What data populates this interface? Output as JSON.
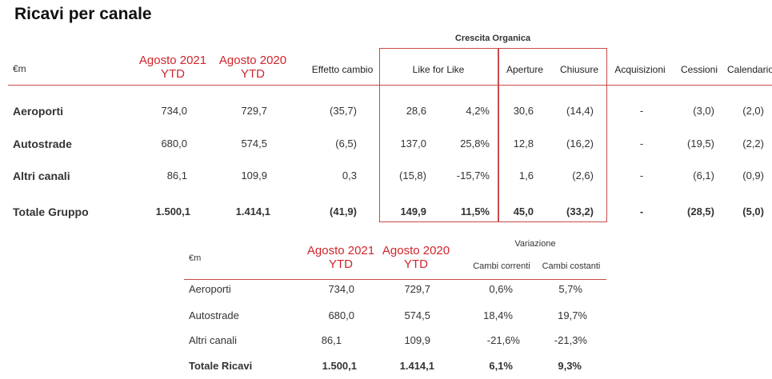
{
  "title": "Ricavi per canale",
  "table1": {
    "group_header": "Crescita Organica",
    "unit": "€m",
    "col_headers": {
      "ago2021": "Agosto 2021\nYTD",
      "ago2020": "Agosto 2020\nYTD",
      "effetto": "Effetto cambio",
      "lfl": "Like for Like",
      "aperture": "Aperture",
      "chiusure": "Chiusure",
      "acquisizioni": "Acquisizioni",
      "cessioni": "Cessioni",
      "calendario": "Calendario"
    },
    "rows": [
      {
        "label": "Aeroporti",
        "ago2021": "734,0",
        "ago2020": "729,7",
        "effetto": "(35,7)",
        "lfl_val": "28,6",
        "lfl_pct": "4,2%",
        "aperture": "30,6",
        "chiusure": "(14,4)",
        "acquisizioni": "-",
        "cessioni": "(3,0)",
        "calendario": "(2,0)"
      },
      {
        "label": "Autostrade",
        "ago2021": "680,0",
        "ago2020": "574,5",
        "effetto": "(6,5)",
        "lfl_val": "137,0",
        "lfl_pct": "25,8%",
        "aperture": "12,8",
        "chiusure": "(16,2)",
        "acquisizioni": "-",
        "cessioni": "(19,5)",
        "calendario": "(2,2)"
      },
      {
        "label": "Altri canali",
        "ago2021": "86,1",
        "ago2020": "109,9",
        "effetto": "0,3",
        "lfl_val": "(15,8)",
        "lfl_pct": "-15,7%",
        "aperture": "1,6",
        "chiusure": "(2,6)",
        "acquisizioni": "-",
        "cessioni": "(6,1)",
        "calendario": "(0,9)"
      },
      {
        "label": "Totale Gruppo",
        "ago2021": "1.500,1",
        "ago2020": "1.414,1",
        "effetto": "(41,9)",
        "lfl_val": "149,9",
        "lfl_pct": "11,5%",
        "aperture": "45,0",
        "chiusure": "(33,2)",
        "acquisizioni": "-",
        "cessioni": "(28,5)",
        "calendario": "(5,0)"
      }
    ]
  },
  "table2": {
    "unit": "€m",
    "group_header": "Variazione",
    "col_headers": {
      "ago2021": "Agosto 2021\nYTD",
      "ago2020": "Agosto 2020\nYTD",
      "correnti": "Cambi correnti",
      "costanti": "Cambi costanti"
    },
    "rows": [
      {
        "label": "Aeroporti",
        "ago2021": "734,0",
        "ago2020": "729,7",
        "correnti": "0,6%",
        "costanti": "5,7%"
      },
      {
        "label": "Autostrade",
        "ago2021": "680,0",
        "ago2020": "574,5",
        "correnti": "18,4%",
        "costanti": "19,7%"
      },
      {
        "label": "Altri canali",
        "ago2021": "86,1",
        "ago2020": "109,9",
        "correnti": "-21,6%",
        "costanti": "-21,3%"
      },
      {
        "label": "Totale Ricavi",
        "ago2021": "1.500,1",
        "ago2020": "1.414,1",
        "correnti": "6,1%",
        "costanti": "9,3%"
      }
    ]
  }
}
